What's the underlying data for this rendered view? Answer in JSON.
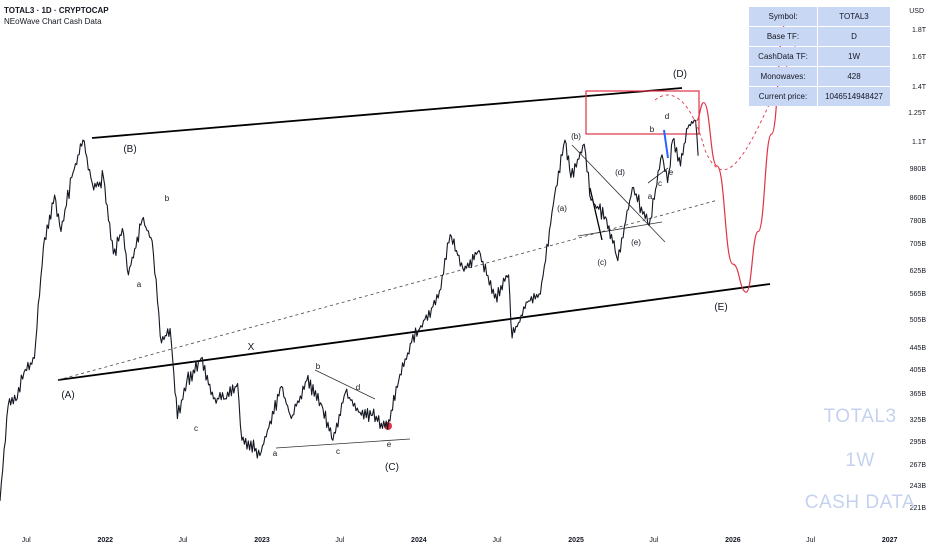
{
  "header": {
    "symbol_line": "TOTAL3 · 1D · CRYPTOCAP",
    "indicator": "NEoWave Chart Cash Data"
  },
  "info_table": [
    {
      "key": "Symbol:",
      "value": "TOTAL3"
    },
    {
      "key": "Base TF:",
      "value": "D"
    },
    {
      "key": "CashData TF:",
      "value": "1W"
    },
    {
      "key": "Monowaves:",
      "value": "428"
    },
    {
      "key": "Current price:",
      "value": "1046514948427"
    }
  ],
  "price_scale": {
    "currency": "USD",
    "labels": [
      {
        "text": "1.8T",
        "value": 1800000000000.0
      },
      {
        "text": "1.6T",
        "value": 1600000000000.0
      },
      {
        "text": "1.4T",
        "value": 1400000000000.0
      },
      {
        "text": "1.25T",
        "value": 1250000000000.0
      },
      {
        "text": "1.1T",
        "value": 1100000000000.0
      },
      {
        "text": "980B",
        "value": 980000000000.0
      },
      {
        "text": "860B",
        "value": 860000000000.0
      },
      {
        "text": "780B",
        "value": 780000000000.0
      },
      {
        "text": "705B",
        "value": 705000000000.0
      },
      {
        "text": "625B",
        "value": 625000000000.0
      },
      {
        "text": "565B",
        "value": 565000000000.0
      },
      {
        "text": "505B",
        "value": 505000000000.0
      },
      {
        "text": "445B",
        "value": 445000000000.0
      },
      {
        "text": "405B",
        "value": 405000000000.0
      },
      {
        "text": "365B",
        "value": 365000000000.0
      },
      {
        "text": "325B",
        "value": 325000000000.0
      },
      {
        "text": "295B",
        "value": 295000000000.0
      },
      {
        "text": "267B",
        "value": 267000000000.0
      },
      {
        "text": "243B",
        "value": 243000000000.0
      },
      {
        "text": "221B",
        "value": 221000000000.0
      }
    ]
  },
  "time_axis": {
    "labels": [
      {
        "text": "Jul",
        "date": "2021-07",
        "year": false
      },
      {
        "text": "2022",
        "date": "2022-01",
        "year": true
      },
      {
        "text": "Jul",
        "date": "2022-07",
        "year": false
      },
      {
        "text": "2023",
        "date": "2023-01",
        "year": true
      },
      {
        "text": "Jul",
        "date": "2023-07",
        "year": false
      },
      {
        "text": "2024",
        "date": "2024-01",
        "year": true
      },
      {
        "text": "Jul",
        "date": "2024-07",
        "year": false
      },
      {
        "text": "2025",
        "date": "2025-01",
        "year": true
      },
      {
        "text": "Jul",
        "date": "2025-07",
        "year": false
      },
      {
        "text": "2026",
        "date": "2026-01",
        "year": true
      },
      {
        "text": "Jul",
        "date": "2026-07",
        "year": false
      },
      {
        "text": "2027",
        "date": "2027-01",
        "year": true
      }
    ]
  },
  "watermark": [
    "TOTAL3",
    "1W",
    "CASH DATA"
  ],
  "wave_labels": [
    "(A)",
    "(B)",
    "(C)",
    "(D)",
    "(E)",
    "X",
    "a",
    "b",
    "c",
    "d",
    "e",
    "(a)",
    "(b)",
    "(c)",
    "(d)",
    "(e)"
  ],
  "colors": {
    "price": "#131722",
    "projection": "#e03345",
    "zone": "#e03345",
    "marker": "#e03345",
    "segment": "#2962ff",
    "table_bg": "#c8d7f4",
    "watermark": "#c5d2ef"
  },
  "chart_data": {
    "type": "line",
    "title": "",
    "xlabel": "",
    "ylabel": "",
    "y_scale": "log",
    "ylim": [
      210000000000.0,
      1900000000000.0
    ],
    "xlim": [
      "2021-05",
      "2027-02"
    ],
    "series": [
      {
        "values": [
          [
            "2021-05-01",
            230000000000.0
          ],
          [
            "2021-05-20",
            350000000000.0
          ],
          [
            "2021-06-10",
            360000000000.0
          ],
          [
            "2021-06-26",
            405000000000.0
          ],
          [
            "2021-07-20",
            430000000000.0
          ],
          [
            "2021-08-10",
            700000000000.0
          ],
          [
            "2021-09-05",
            880000000000.0
          ],
          [
            "2021-09-20",
            750000000000.0
          ],
          [
            "2021-10-15",
            950000000000.0
          ],
          [
            "2021-11-10",
            1120000000000.0
          ],
          [
            "2021-12-05",
            900000000000.0
          ],
          [
            "2021-12-28",
            950000000000.0
          ],
          [
            "2022-01-20",
            680000000000.0
          ],
          [
            "2022-02-10",
            760000000000.0
          ],
          [
            "2022-02-24",
            620000000000.0
          ],
          [
            "2022-03-28",
            790000000000.0
          ],
          [
            "2022-04-20",
            720000000000.0
          ],
          [
            "2022-05-12",
            460000000000.0
          ],
          [
            "2022-06-01",
            490000000000.0
          ],
          [
            "2022-06-18",
            330000000000.0
          ],
          [
            "2022-07-10",
            390000000000.0
          ],
          [
            "2022-08-12",
            430000000000.0
          ],
          [
            "2022-09-10",
            360000000000.0
          ],
          [
            "2022-10-10",
            360000000000.0
          ],
          [
            "2022-11-05",
            385000000000.0
          ],
          [
            "2022-11-15",
            300000000000.0
          ],
          [
            "2022-12-30",
            285000000000.0
          ],
          [
            "2023-02-15",
            380000000000.0
          ],
          [
            "2023-03-10",
            330000000000.0
          ],
          [
            "2023-04-15",
            390000000000.0
          ],
          [
            "2023-05-20",
            350000000000.0
          ],
          [
            "2023-06-15",
            300000000000.0
          ],
          [
            "2023-07-14",
            370000000000.0
          ],
          [
            "2023-08-20",
            335000000000.0
          ],
          [
            "2023-09-15",
            335000000000.0
          ],
          [
            "2023-10-20",
            315000000000.0
          ],
          [
            "2023-11-15",
            390000000000.0
          ],
          [
            "2023-12-15",
            460000000000.0
          ],
          [
            "2024-01-15",
            510000000000.0
          ],
          [
            "2024-02-15",
            560000000000.0
          ],
          [
            "2024-03-14",
            740000000000.0
          ],
          [
            "2024-04-15",
            630000000000.0
          ],
          [
            "2024-05-20",
            690000000000.0
          ],
          [
            "2024-06-25",
            560000000000.0
          ],
          [
            "2024-07-28",
            620000000000.0
          ],
          [
            "2024-08-05",
            470000000000.0
          ],
          [
            "2024-09-10",
            550000000000.0
          ],
          [
            "2024-10-10",
            570000000000.0
          ],
          [
            "2024-11-12",
            880000000000.0
          ],
          [
            "2024-12-06",
            1120000000000.0
          ],
          [
            "2024-12-20",
            950000000000.0
          ],
          [
            "2025-01-20",
            1100000000000.0
          ],
          [
            "2025-02-05",
            860000000000.0
          ],
          [
            "2025-03-10",
            800000000000.0
          ],
          [
            "2025-04-08",
            660000000000.0
          ],
          [
            "2025-05-12",
            910000000000.0
          ],
          [
            "2025-06-20",
            770000000000.0
          ],
          [
            "2025-07-20",
            1050000000000.0
          ],
          [
            "2025-08-02",
            930000000000.0
          ],
          [
            "2025-08-14",
            1120000000000.0
          ],
          [
            "2025-09-01",
            1000000000000.0
          ],
          [
            "2025-09-18",
            1180000000000.0
          ],
          [
            "2025-10-06",
            1220000000000.0
          ],
          [
            "2025-10-12",
            1046000000000.0
          ]
        ]
      },
      {
        "values": [
          [
            "2025-10-08",
            1220000000000.0
          ],
          [
            "2025-10-25",
            1320000000000.0
          ],
          [
            "2025-11-25",
            1000000000000.0
          ],
          [
            "2026-01-01",
            650000000000.0
          ],
          [
            "2026-02-01",
            575000000000.0
          ],
          [
            "2026-03-01",
            750000000000.0
          ],
          [
            "2026-04-01",
            1150000000000.0
          ],
          [
            "2026-05-01",
            1850000000000.0
          ]
        ]
      }
    ]
  }
}
